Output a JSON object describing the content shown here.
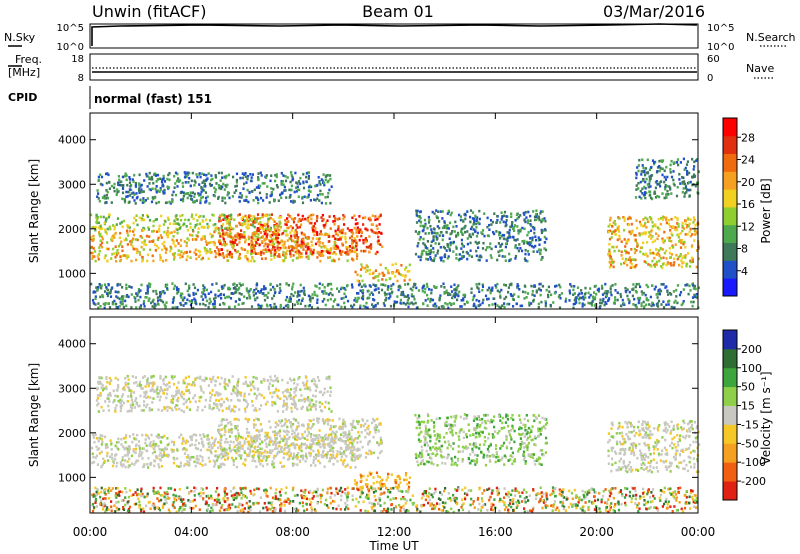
{
  "header": {
    "station": "Unwin (fitACF)",
    "beam": "Beam 01",
    "date": "03/Mar/2016"
  },
  "nsky_panel": {
    "left_label": "N.Sky",
    "right_label": "N.Search",
    "left_ticks": [
      "10^5",
      "10^0"
    ],
    "right_ticks": [
      "10^5",
      "10^0"
    ]
  },
  "freq_panel": {
    "left_label_1": "Freq.",
    "left_label_2": "[MHz]",
    "right_label": "Nave",
    "left_ticks": [
      "18",
      "8"
    ],
    "right_ticks": [
      "60",
      "0"
    ]
  },
  "cpid": {
    "label": "CPID",
    "value": "normal (fast) 151"
  },
  "x_axis": {
    "label": "Time UT",
    "ticks": [
      "00:00",
      "04:00",
      "08:00",
      "12:00",
      "16:00",
      "20:00",
      "00:00"
    ]
  },
  "chart_data": [
    {
      "type": "heatmap",
      "name": "power",
      "ylabel": "Slant Range [km]",
      "yticks": [
        "1000",
        "2000",
        "3000",
        "4000"
      ],
      "ylim": [
        200,
        4600
      ],
      "xlim_hours": [
        0,
        24
      ],
      "colorbar": {
        "label": "Power [dB]",
        "ticks": [
          "4",
          "8",
          "12",
          "16",
          "20",
          "24",
          "28"
        ],
        "colors": [
          "#1a1aff",
          "#2050c8",
          "#3e7a5a",
          "#4ea84e",
          "#8fce30",
          "#f0d020",
          "#f5a020",
          "#f06a10",
          "#e03010",
          "#ff0000"
        ]
      },
      "echo_regions": [
        {
          "t_start": 0.0,
          "t_end": 10.5,
          "range_low": 1300,
          "range_high": 2000,
          "level": "high"
        },
        {
          "t_start": 5.0,
          "t_end": 11.5,
          "range_low": 1450,
          "range_high": 2350,
          "level": "very high"
        },
        {
          "t_start": 10.4,
          "t_end": 12.6,
          "range_low": 850,
          "range_high": 1250,
          "level": "high"
        },
        {
          "t_start": 0.0,
          "t_end": 7.5,
          "range_low": 2000,
          "range_high": 2350,
          "level": "medium"
        },
        {
          "t_start": 0.2,
          "t_end": 9.5,
          "range_low": 2600,
          "range_high": 3300,
          "level": "low"
        },
        {
          "t_start": 12.8,
          "t_end": 18.0,
          "range_low": 1300,
          "range_high": 2450,
          "level": "low"
        },
        {
          "t_start": 20.4,
          "t_end": 24.0,
          "range_low": 1150,
          "range_high": 2300,
          "level": "high"
        },
        {
          "t_start": 21.5,
          "t_end": 24.0,
          "range_low": 2700,
          "range_high": 3600,
          "level": "low"
        },
        {
          "t_start": 0.0,
          "t_end": 24.0,
          "range_low": 250,
          "range_high": 800,
          "level": "low"
        }
      ]
    },
    {
      "type": "heatmap",
      "name": "velocity",
      "ylabel": "Slant Range [km]",
      "yticks": [
        "1000",
        "2000",
        "3000",
        "4000"
      ],
      "ylim": [
        200,
        4600
      ],
      "xlim_hours": [
        0,
        24
      ],
      "colorbar": {
        "label": "Velocity [m s⁻¹]",
        "ticks": [
          "200",
          "100",
          "50",
          "15",
          "-15",
          "-50",
          "-100",
          "-200"
        ],
        "colors": [
          "#1e2aa8",
          "#2f6e32",
          "#3ca53c",
          "#8fd04a",
          "#c8c8c0",
          "#f5c828",
          "#f5a020",
          "#f06010",
          "#e02010"
        ]
      },
      "echo_regions": [
        {
          "t_start": 0.0,
          "t_end": 10.5,
          "range_low": 1250,
          "range_high": 2000,
          "level": "ground"
        },
        {
          "t_start": 5.0,
          "t_end": 11.5,
          "range_low": 1450,
          "range_high": 2350,
          "level": "ground"
        },
        {
          "t_start": 10.4,
          "t_end": 12.6,
          "range_low": 750,
          "range_high": 1150,
          "level": "negative"
        },
        {
          "t_start": 0.2,
          "t_end": 9.5,
          "range_low": 2500,
          "range_high": 3300,
          "level": "ground"
        },
        {
          "t_start": 12.8,
          "t_end": 18.0,
          "range_low": 1300,
          "range_high": 2450,
          "level": "positive"
        },
        {
          "t_start": 20.4,
          "t_end": 24.0,
          "range_low": 1150,
          "range_high": 2300,
          "level": "ground"
        },
        {
          "t_start": 0.0,
          "t_end": 24.0,
          "range_low": 250,
          "range_high": 800,
          "level": "mixed"
        }
      ]
    }
  ]
}
